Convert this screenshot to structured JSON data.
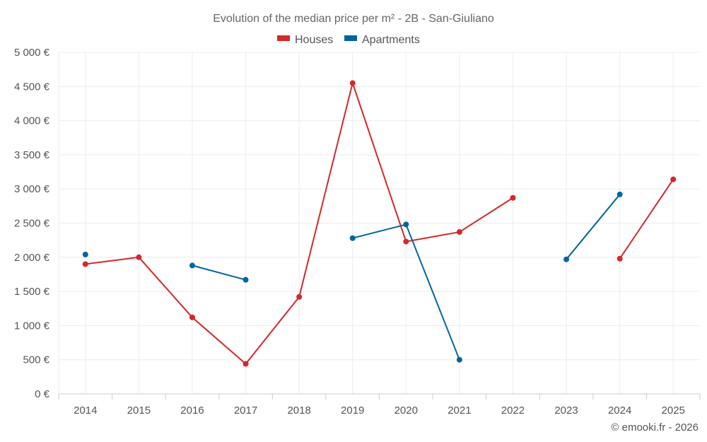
{
  "chart_data": {
    "type": "line",
    "title": "Evolution of the median price per m² - 2B - San-Giuliano",
    "xlabel": "",
    "ylabel": "",
    "categories": [
      "2014",
      "2015",
      "2016",
      "2017",
      "2018",
      "2019",
      "2020",
      "2021",
      "2022",
      "2023",
      "2024",
      "2025"
    ],
    "ylim": [
      0,
      5000
    ],
    "yticks": [
      0,
      500,
      1000,
      1500,
      2000,
      2500,
      3000,
      3500,
      4000,
      4500,
      5000
    ],
    "ytick_labels": [
      "0 €",
      "500 €",
      "1 000 €",
      "1 500 €",
      "2 000 €",
      "2 500 €",
      "3 000 €",
      "3 500 €",
      "4 000 €",
      "4 500 €",
      "5 000 €"
    ],
    "grid": true,
    "legend_position": "top-center",
    "series": [
      {
        "name": "Houses",
        "color": "#d62728",
        "values": [
          1900,
          2000,
          1120,
          440,
          1420,
          4550,
          2230,
          2370,
          2870,
          null,
          1980,
          3140
        ]
      },
      {
        "name": "Apartments",
        "color": "#0065a0",
        "values": [
          2040,
          null,
          1880,
          1670,
          null,
          2280,
          2480,
          500,
          null,
          1970,
          2920,
          null
        ]
      }
    ],
    "credit": "© emooki.fr - 2026"
  }
}
